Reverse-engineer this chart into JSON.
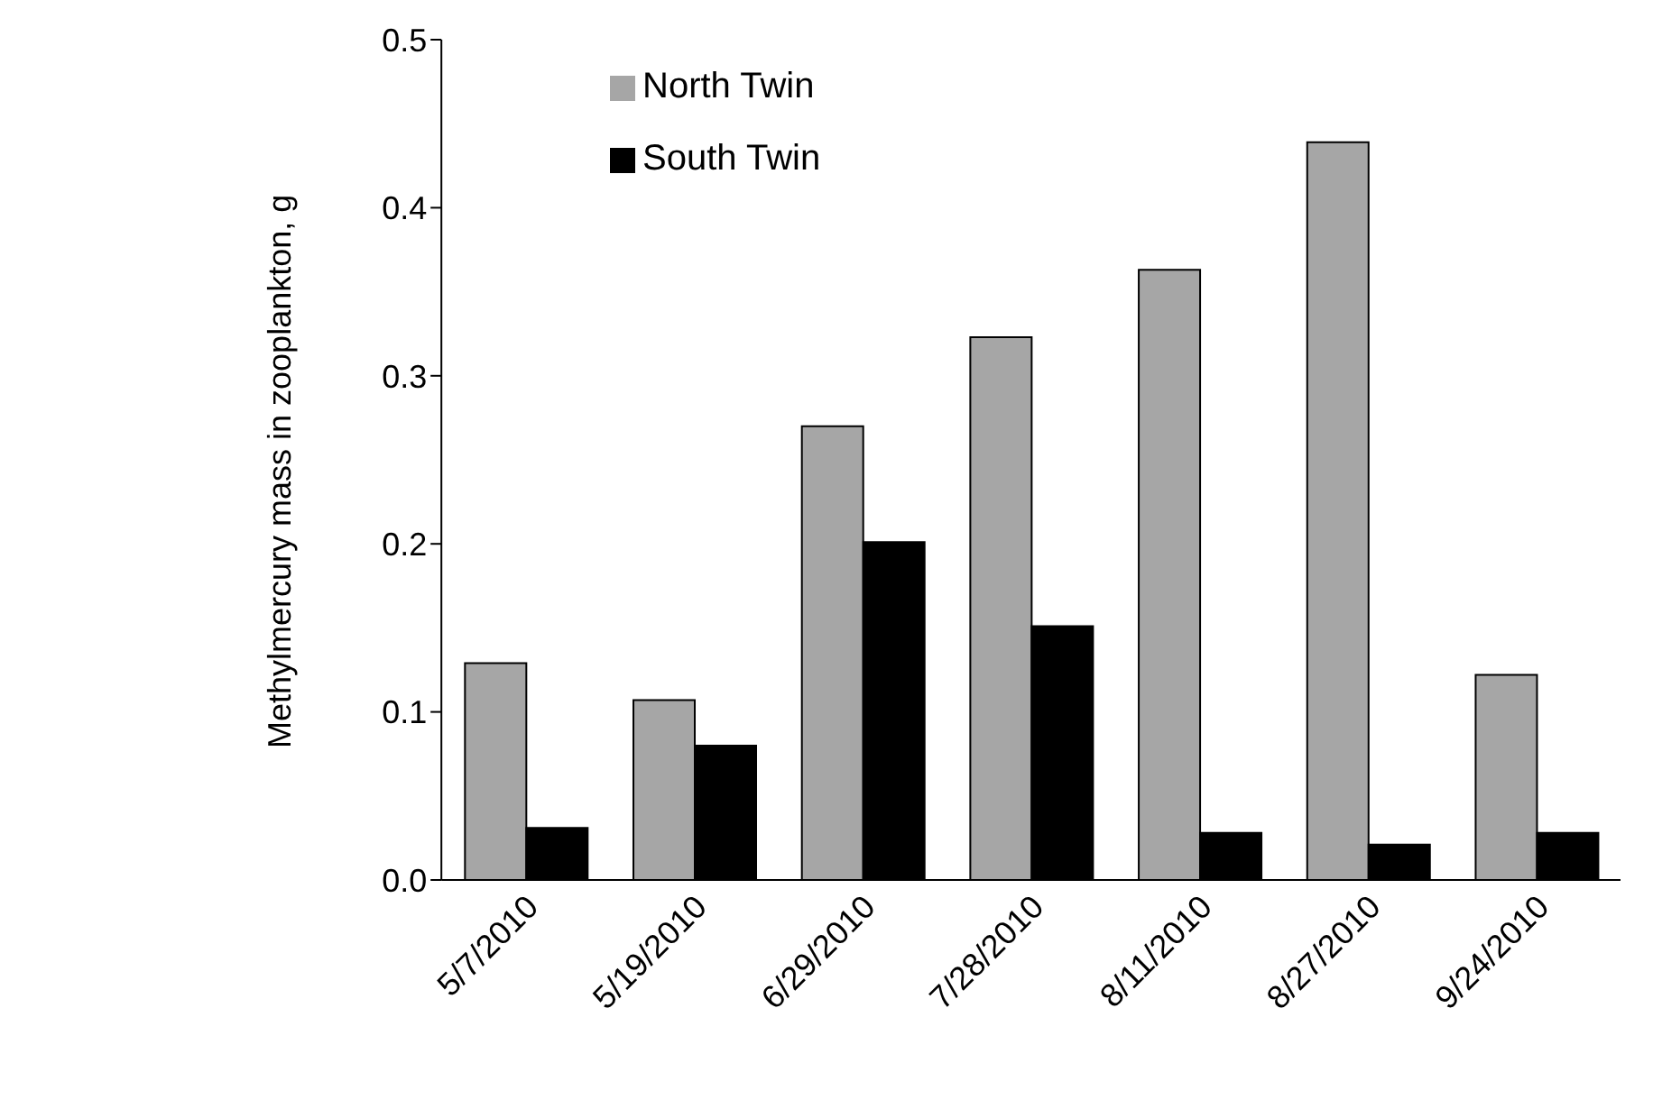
{
  "chart_data": {
    "type": "bar",
    "ylabel": "Methylmercury mass in zooplankton, g",
    "categories": [
      "5/7/2010",
      "5/19/2010",
      "6/29/2010",
      "7/28/2010",
      "8/11/2010",
      "8/27/2010",
      "9/24/2010"
    ],
    "series": [
      {
        "name": "North Twin",
        "color": "#a6a6a6",
        "values": [
          0.129,
          0.107,
          0.27,
          0.323,
          0.363,
          0.439,
          0.122
        ]
      },
      {
        "name": "South Twin",
        "color": "#000000",
        "values": [
          0.031,
          0.08,
          0.201,
          0.151,
          0.028,
          0.021,
          0.028
        ]
      }
    ],
    "ylim": [
      0,
      0.5
    ],
    "yticks": [
      {
        "value": 0,
        "label": "0.0"
      },
      {
        "value": 0.1,
        "label": "0.1"
      },
      {
        "value": 0.2,
        "label": "0.2"
      },
      {
        "value": 0.3,
        "label": "0.3"
      },
      {
        "value": 0.4,
        "label": "0.4"
      },
      {
        "value": 0.5,
        "label": "0.5"
      }
    ],
    "grid": false,
    "legend": "top left"
  }
}
